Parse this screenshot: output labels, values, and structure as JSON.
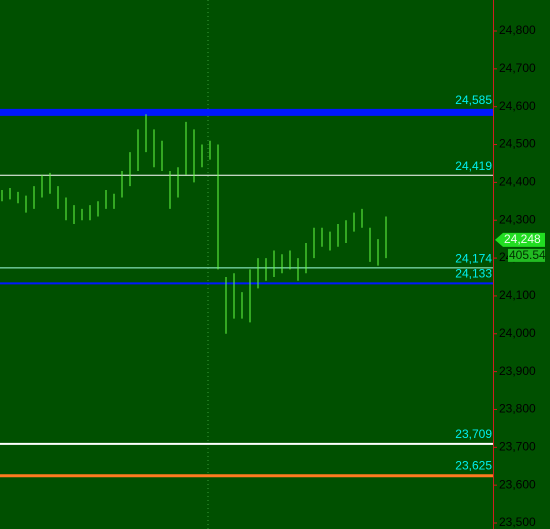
{
  "chart_data": {
    "type": "ohlc",
    "ylim": [
      23500,
      24800
    ],
    "yticks": [
      {
        "value": 23500,
        "label": "23,500"
      },
      {
        "value": 23600,
        "label": "23,600"
      },
      {
        "value": 23700,
        "label": "23,700"
      },
      {
        "value": 23800,
        "label": "23,800"
      },
      {
        "value": 23900,
        "label": "23,900"
      },
      {
        "value": 24000,
        "label": "24,000"
      },
      {
        "value": 24100,
        "label": "24,100"
      },
      {
        "value": 24200,
        "label": "24,200"
      },
      {
        "value": 24300,
        "label": "24,300"
      },
      {
        "value": 24400,
        "label": "24,400"
      },
      {
        "value": 24500,
        "label": "24,500"
      },
      {
        "value": 24600,
        "label": "24,600"
      },
      {
        "value": 24700,
        "label": "24,700"
      },
      {
        "value": 24800,
        "label": "24,800"
      }
    ],
    "color": "#66ff44",
    "high": [
      24380,
      24385,
      24375,
      24365,
      24390,
      24420,
      24425,
      24390,
      24360,
      24340,
      24330,
      24340,
      24350,
      24380,
      24370,
      24430,
      24480,
      24540,
      24580,
      24540,
      24510,
      24430,
      24440,
      24560,
      24540,
      24500,
      24510,
      24500,
      24150,
      24160,
      24110,
      24170,
      24200,
      24200,
      24220,
      24210,
      24220,
      24200,
      24240,
      24280,
      24280,
      24270,
      24290,
      24300,
      24320,
      24330,
      24280,
      24250,
      24310
    ],
    "low": [
      24350,
      24355,
      24345,
      24320,
      24330,
      24360,
      24370,
      24330,
      24300,
      24290,
      24300,
      24300,
      24310,
      24330,
      24330,
      24360,
      24390,
      24430,
      24480,
      24440,
      24430,
      24330,
      24360,
      24420,
      24400,
      24440,
      24460,
      24170,
      24000,
      24040,
      24040,
      24030,
      24120,
      24140,
      24150,
      24160,
      24170,
      24140,
      24160,
      24200,
      24230,
      24220,
      24230,
      24240,
      24270,
      24280,
      24190,
      24180,
      24200
    ],
    "levels": [
      {
        "value": 24585,
        "label": "24,585",
        "color": "#0018ff",
        "width": 7
      },
      {
        "value": 24419,
        "label": "24,419",
        "color": "#ffffff",
        "width": 1
      },
      {
        "value": 24174,
        "label": "24,174",
        "color": "#a0ffe0",
        "width": 1
      },
      {
        "value": 24133,
        "label": "24,133",
        "color": "#0018ff",
        "width": 2
      },
      {
        "value": 23709,
        "label": "23,709",
        "color": "#ffffff",
        "width": 2
      },
      {
        "value": 23625,
        "label": "23,625",
        "color": "#ff7a20",
        "width": 3
      }
    ],
    "last_price": {
      "value": 24248,
      "label": "24,248"
    },
    "annotation": "405.54"
  }
}
